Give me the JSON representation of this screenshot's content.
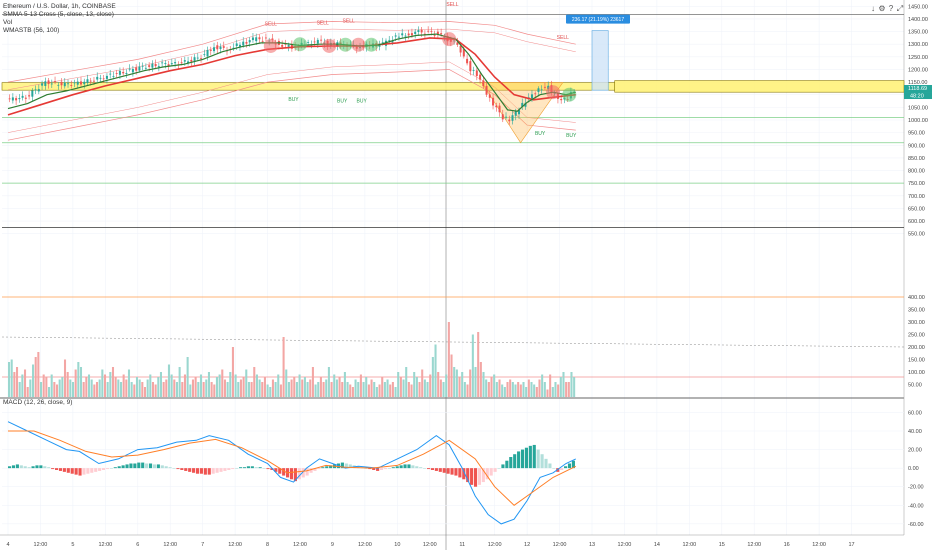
{
  "header": {
    "title": "Ethereum / U.S. Dollar, 1h, COINBASE",
    "indicators": [
      "SMMA 5-13 Cross (5, close, 13, close)",
      "Vol",
      "WMASTB (56, 100)"
    ],
    "macd_label": "MACD (12, 26, close, 9)",
    "top_right_icons": [
      "down-arrow-icon",
      "gear-icon",
      "question-icon",
      "fullscreen-icon"
    ]
  },
  "colors": {
    "up": "#26a69a",
    "down": "#ef5350",
    "smma_fast": "#2e7d32",
    "smma_slow": "#e53935",
    "band": "#f28b8b",
    "zone_fill": "#fff27a",
    "zone_border": "#8c7a00",
    "macd_line": "#2196f3",
    "signal_line": "#ff7f27",
    "level_green": "#7fd08a",
    "level_orange": "#ff9d4d",
    "projection": "#5ca8e0"
  },
  "chart_data": [
    {
      "type": "line",
      "name": "price",
      "title": "Ethereum / U.S. Dollar, 1h, COINBASE",
      "x_ticks": [
        "4",
        "12:00",
        "5",
        "12:00",
        "6",
        "12:00",
        "7",
        "12:00",
        "8",
        "12:00",
        "9",
        "12:00",
        "10",
        "12:00",
        "11",
        "12:00",
        "12",
        "12:00",
        "13",
        "12:00",
        "14",
        "12:00",
        "15",
        "12:00",
        "16",
        "12:00",
        "17"
      ],
      "y_ticks": [
        "1450.00",
        "1400.00",
        "1350.00",
        "1300.00",
        "1250.00",
        "1200.00",
        "1150.00",
        "1100.00",
        "1050.00",
        "1000.00",
        "950.00",
        "900.00",
        "850.00",
        "800.00",
        "750.00",
        "700.00",
        "650.00",
        "600.00",
        "550.00"
      ],
      "ylim": [
        525,
        1475
      ],
      "x_days": [
        4,
        17.5
      ],
      "close_path": [
        [
          4.0,
          1080
        ],
        [
          4.3,
          1090
        ],
        [
          4.6,
          1150
        ],
        [
          4.9,
          1140
        ],
        [
          5.2,
          1150
        ],
        [
          5.5,
          1170
        ],
        [
          5.8,
          1190
        ],
        [
          6.1,
          1210
        ],
        [
          6.4,
          1220
        ],
        [
          6.7,
          1225
        ],
        [
          7.0,
          1250
        ],
        [
          7.2,
          1290
        ],
        [
          7.4,
          1280
        ],
        [
          7.6,
          1300
        ],
        [
          7.8,
          1320
        ],
        [
          8.0,
          1320
        ],
        [
          8.2,
          1300
        ],
        [
          8.4,
          1290
        ],
        [
          8.6,
          1300
        ],
        [
          8.8,
          1310
        ],
        [
          9.0,
          1300
        ],
        [
          9.2,
          1300
        ],
        [
          9.4,
          1290
        ],
        [
          9.6,
          1295
        ],
        [
          9.8,
          1300
        ],
        [
          10.0,
          1330
        ],
        [
          10.2,
          1340
        ],
        [
          10.35,
          1350
        ],
        [
          10.5,
          1345
        ],
        [
          10.65,
          1340
        ],
        [
          10.8,
          1320
        ],
        [
          10.95,
          1300
        ],
        [
          11.05,
          1250
        ],
        [
          11.15,
          1200
        ],
        [
          11.25,
          1180
        ],
        [
          11.35,
          1130
        ],
        [
          11.45,
          1080
        ],
        [
          11.55,
          1050
        ],
        [
          11.65,
          1010
        ],
        [
          11.75,
          1000
        ],
        [
          11.85,
          1030
        ],
        [
          11.95,
          1060
        ],
        [
          12.05,
          1090
        ],
        [
          12.15,
          1110
        ],
        [
          12.25,
          1125
        ],
        [
          12.35,
          1130
        ],
        [
          12.45,
          1100
        ],
        [
          12.55,
          1080
        ],
        [
          12.65,
          1090
        ],
        [
          12.75,
          1115
        ]
      ],
      "smma_fast_path": [
        [
          4.0,
          1045
        ],
        [
          4.3,
          1065
        ],
        [
          4.6,
          1100
        ],
        [
          4.9,
          1115
        ],
        [
          5.2,
          1135
        ],
        [
          5.5,
          1155
        ],
        [
          5.8,
          1175
        ],
        [
          6.1,
          1195
        ],
        [
          6.4,
          1210
        ],
        [
          6.7,
          1220
        ],
        [
          7.0,
          1240
        ],
        [
          7.3,
          1270
        ],
        [
          7.6,
          1290
        ],
        [
          7.9,
          1305
        ],
        [
          8.2,
          1305
        ],
        [
          8.5,
          1295
        ],
        [
          8.8,
          1300
        ],
        [
          9.1,
          1300
        ],
        [
          9.4,
          1293
        ],
        [
          9.7,
          1296
        ],
        [
          10.0,
          1320
        ],
        [
          10.3,
          1335
        ],
        [
          10.6,
          1340
        ],
        [
          10.9,
          1320
        ],
        [
          11.1,
          1260
        ],
        [
          11.3,
          1180
        ],
        [
          11.5,
          1110
        ],
        [
          11.7,
          1040
        ],
        [
          11.85,
          1035
        ],
        [
          12.0,
          1070
        ],
        [
          12.2,
          1100
        ],
        [
          12.4,
          1110
        ],
        [
          12.6,
          1100
        ],
        [
          12.75,
          1110
        ]
      ],
      "smma_slow_path": [
        [
          4.0,
          1020
        ],
        [
          4.5,
          1060
        ],
        [
          5.0,
          1100
        ],
        [
          5.5,
          1135
        ],
        [
          6.0,
          1165
        ],
        [
          6.5,
          1195
        ],
        [
          7.0,
          1220
        ],
        [
          7.5,
          1255
        ],
        [
          8.0,
          1280
        ],
        [
          8.5,
          1290
        ],
        [
          9.0,
          1293
        ],
        [
          9.5,
          1293
        ],
        [
          10.0,
          1305
        ],
        [
          10.5,
          1325
        ],
        [
          10.9,
          1320
        ],
        [
          11.2,
          1260
        ],
        [
          11.5,
          1170
        ],
        [
          11.8,
          1100
        ],
        [
          12.1,
          1080
        ],
        [
          12.4,
          1090
        ],
        [
          12.75,
          1100
        ]
      ],
      "band_upper_path": [
        [
          4.0,
          1150
        ],
        [
          5.0,
          1195
        ],
        [
          6.0,
          1240
        ],
        [
          7.0,
          1300
        ],
        [
          8.0,
          1380
        ],
        [
          9.0,
          1390
        ],
        [
          10.0,
          1385
        ],
        [
          10.8,
          1390
        ],
        [
          11.5,
          1375
        ],
        [
          12.0,
          1340
        ],
        [
          12.75,
          1300
        ]
      ],
      "band_lower_path": [
        [
          4.0,
          920
        ],
        [
          5.0,
          970
        ],
        [
          6.0,
          1020
        ],
        [
          7.0,
          1080
        ],
        [
          8.0,
          1150
        ],
        [
          9.0,
          1180
        ],
        [
          10.0,
          1190
        ],
        [
          10.8,
          1200
        ],
        [
          11.5,
          1100
        ],
        [
          12.0,
          980
        ],
        [
          12.75,
          960
        ]
      ],
      "zone": [
        1118,
        1148
      ],
      "zone_end_day": 13.35,
      "horizontal_levels": [
        1010,
        910,
        750
      ],
      "price_line": 1118.69,
      "price_label": "1118.69",
      "sub_label": "48:20",
      "vertical_marker_day": 10.75,
      "signals": [
        {
          "label": "SELL",
          "day": 8.05,
          "value": 1375
        },
        {
          "label": "SELL",
          "day": 8.85,
          "value": 1378
        },
        {
          "label": "SELL",
          "day": 9.25,
          "value": 1385
        },
        {
          "label": "SELL",
          "day": 10.85,
          "value": 1452
        },
        {
          "label": "SELL",
          "day": 12.55,
          "value": 1320
        },
        {
          "label": "BUY",
          "day": 8.4,
          "value": 1075
        },
        {
          "label": "BUY",
          "day": 9.15,
          "value": 1070
        },
        {
          "label": "BUY",
          "day": 9.45,
          "value": 1070
        },
        {
          "label": "BUY",
          "day": 12.2,
          "value": 940
        },
        {
          "label": "BUY",
          "day": 12.68,
          "value": 932
        }
      ],
      "projection": {
        "label": "236.17 (21.19%) 23617",
        "day_start": 13.0,
        "day_end": 13.25,
        "from": 1118,
        "to": 1354
      },
      "pattern_circles": [
        {
          "day": 8.05,
          "value": 1293,
          "color": "red"
        },
        {
          "day": 8.5,
          "value": 1300,
          "color": "green"
        },
        {
          "day": 8.95,
          "value": 1293,
          "color": "red"
        },
        {
          "day": 9.2,
          "value": 1298,
          "color": "green"
        },
        {
          "day": 9.4,
          "value": 1298,
          "color": "red"
        },
        {
          "day": 9.6,
          "value": 1298,
          "color": "green"
        },
        {
          "day": 10.8,
          "value": 1320,
          "color": "red"
        },
        {
          "day": 12.4,
          "value": 1110,
          "color": "red"
        },
        {
          "day": 12.65,
          "value": 1100,
          "color": "green"
        }
      ]
    },
    {
      "type": "bar",
      "name": "volume",
      "y_ticks": [
        "400.00",
        "350.00",
        "300.00",
        "250.00",
        "200.00",
        "150.00",
        "100.00",
        "50.00"
      ],
      "ylim": [
        0,
        420
      ],
      "levels": [
        {
          "value": 400,
          "style": "solid"
        },
        {
          "value": 80,
          "style": "solid"
        },
        {
          "value": 220,
          "style": "dashed"
        }
      ],
      "values": [
        140,
        150,
        100,
        120,
        60,
        90,
        110,
        40,
        70,
        130,
        160,
        180,
        60,
        90,
        80,
        40,
        90,
        60,
        50,
        70,
        80,
        150,
        100,
        70,
        60,
        110,
        140,
        120,
        60,
        80,
        90,
        70,
        50,
        60,
        70,
        110,
        90,
        60,
        100,
        120,
        80,
        70,
        60,
        90,
        70,
        110,
        60,
        50,
        80,
        70,
        60,
        40,
        70,
        90,
        60,
        50,
        80,
        100,
        60,
        70,
        130,
        90,
        70,
        60,
        120,
        60,
        90,
        160,
        50,
        70,
        80,
        60,
        90,
        60,
        70,
        100,
        60,
        50,
        80,
        90,
        110,
        70,
        60,
        100,
        200,
        90,
        60,
        70,
        80,
        110,
        60,
        60,
        120,
        90,
        70,
        60,
        80,
        50,
        40,
        70,
        60,
        90,
        50,
        240,
        110,
        60,
        70,
        80,
        60,
        90,
        70,
        80,
        60,
        70,
        120,
        50,
        60,
        80,
        60,
        70,
        120,
        60,
        90,
        70,
        80,
        60,
        100,
        60,
        50,
        40,
        70,
        60,
        90,
        60,
        80,
        50,
        70,
        60,
        40,
        50,
        80,
        60,
        70,
        50,
        60,
        40,
        100,
        80,
        70,
        120,
        60,
        50,
        100,
        80,
        60,
        110,
        70,
        60,
        90,
        160,
        210,
        100,
        70,
        60,
        90,
        300,
        170,
        120,
        110,
        80,
        100,
        60,
        50,
        110,
        250,
        120,
        260,
        140,
        100,
        70,
        60,
        80,
        90,
        60,
        70,
        50,
        40,
        60,
        70,
        60,
        50,
        60,
        50,
        60,
        40,
        70,
        60,
        50,
        40,
        70,
        90,
        60,
        30,
        90,
        40,
        60,
        50,
        80,
        100,
        60,
        60,
        100,
        80
      ]
    },
    {
      "type": "line",
      "name": "macd",
      "title": "MACD (12, 26, close, 9)",
      "y_ticks": [
        "60.00",
        "40.00",
        "20.00",
        "0.00",
        "-20.00",
        "-40.00",
        "-60.00"
      ],
      "ylim": [
        -72,
        68
      ],
      "macd_path": [
        [
          4.0,
          50
        ],
        [
          4.3,
          40
        ],
        [
          4.6,
          30
        ],
        [
          4.9,
          20
        ],
        [
          5.1,
          18
        ],
        [
          5.4,
          5
        ],
        [
          5.7,
          10
        ],
        [
          6.0,
          20
        ],
        [
          6.3,
          22
        ],
        [
          6.6,
          28
        ],
        [
          6.9,
          30
        ],
        [
          7.1,
          35
        ],
        [
          7.4,
          30
        ],
        [
          7.7,
          15
        ],
        [
          8.0,
          5
        ],
        [
          8.2,
          -10
        ],
        [
          8.4,
          -15
        ],
        [
          8.6,
          0
        ],
        [
          8.8,
          10
        ],
        [
          9.0,
          5
        ],
        [
          9.2,
          0
        ],
        [
          9.4,
          2
        ],
        [
          9.7,
          0
        ],
        [
          10.0,
          10
        ],
        [
          10.3,
          20
        ],
        [
          10.6,
          35
        ],
        [
          10.8,
          25
        ],
        [
          11.0,
          0
        ],
        [
          11.2,
          -30
        ],
        [
          11.4,
          -50
        ],
        [
          11.6,
          -60
        ],
        [
          11.8,
          -55
        ],
        [
          12.0,
          -35
        ],
        [
          12.2,
          -10
        ],
        [
          12.4,
          -5
        ],
        [
          12.6,
          5
        ],
        [
          12.75,
          10
        ]
      ],
      "signal_path": [
        [
          4.0,
          40
        ],
        [
          4.4,
          40
        ],
        [
          4.8,
          30
        ],
        [
          5.2,
          18
        ],
        [
          5.6,
          12
        ],
        [
          6.0,
          14
        ],
        [
          6.4,
          20
        ],
        [
          6.8,
          27
        ],
        [
          7.2,
          31
        ],
        [
          7.6,
          22
        ],
        [
          8.0,
          8
        ],
        [
          8.3,
          -5
        ],
        [
          8.6,
          -3
        ],
        [
          8.9,
          3
        ],
        [
          9.2,
          1
        ],
        [
          9.6,
          0
        ],
        [
          10.0,
          3
        ],
        [
          10.4,
          15
        ],
        [
          10.8,
          30
        ],
        [
          11.2,
          10
        ],
        [
          11.5,
          -20
        ],
        [
          11.8,
          -40
        ],
        [
          12.1,
          -25
        ],
        [
          12.4,
          -10
        ],
        [
          12.75,
          2
        ]
      ],
      "histogram": [
        2,
        3,
        4,
        3,
        2,
        1,
        2,
        3,
        3,
        2,
        1,
        -1,
        -2,
        -3,
        -4,
        -5,
        -6,
        -7,
        -8,
        -7,
        -6,
        -5,
        -4,
        -3,
        -2,
        -1,
        0,
        1,
        2,
        3,
        4,
        5,
        5,
        6,
        6,
        5,
        5,
        4,
        4,
        3,
        2,
        1,
        0,
        -1,
        -2,
        -3,
        -4,
        -5,
        -6,
        -6,
        -7,
        -7,
        -6,
        -5,
        -4,
        -3,
        -2,
        -1,
        0,
        1,
        1,
        2,
        2,
        1,
        1,
        0,
        -1,
        -2,
        -4,
        -6,
        -8,
        -10,
        -12,
        -14,
        -12,
        -10,
        -8,
        -5,
        -3,
        -1,
        1,
        2,
        3,
        4,
        5,
        6,
        5,
        4,
        3,
        2,
        1,
        0,
        -1,
        -2,
        -3,
        -2,
        -1,
        0,
        1,
        2,
        3,
        4,
        4,
        3,
        2,
        1,
        0,
        -1,
        -2,
        -3,
        -4,
        -5,
        -6,
        -7,
        -8,
        -10,
        -12,
        -15,
        -18,
        -20,
        -18,
        -15,
        -12,
        -8,
        -4,
        0,
        4,
        8,
        12,
        15,
        18,
        20,
        22,
        24,
        25,
        20,
        15,
        10,
        5,
        0,
        -4,
        -2,
        2,
        5,
        8
      ]
    }
  ],
  "projection_label_bg": "#2a8de0"
}
